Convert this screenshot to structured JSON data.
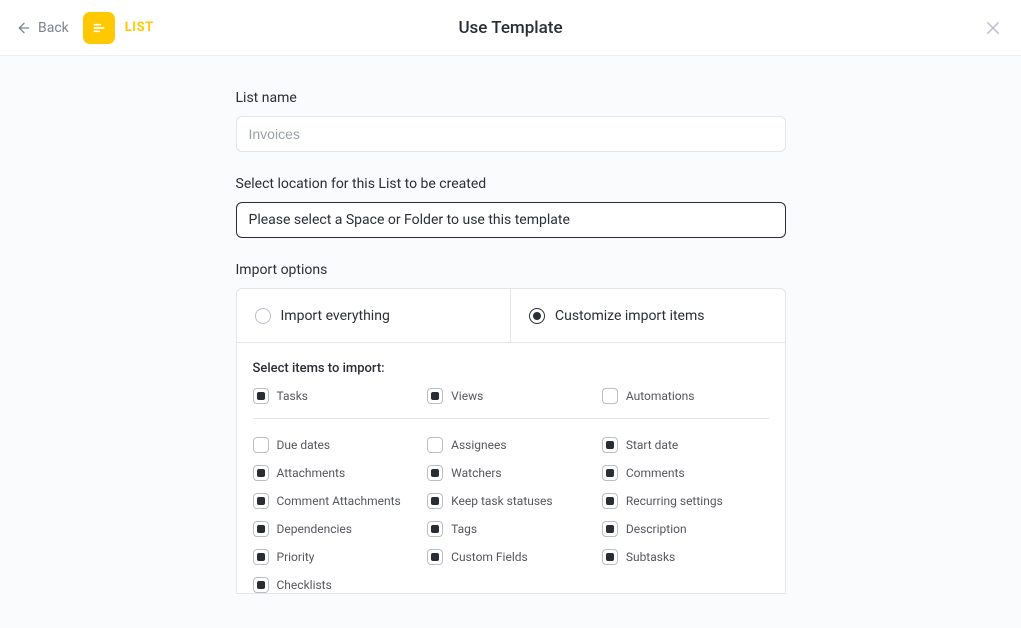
{
  "header": {
    "back_label": "Back",
    "list_badge_label": "LIST",
    "title": "Use Template"
  },
  "form": {
    "list_name_label": "List name",
    "list_name_placeholder": "Invoices",
    "list_name_value": "",
    "location_label": "Select location for this List to be created",
    "location_placeholder": "Please select a Space or Folder to use this template",
    "import_options_label": "Import options",
    "radio": {
      "everything": "Import everything",
      "customize": "Customize import items",
      "selected": "customize"
    },
    "select_items_heading": "Select items to import:",
    "top_items": [
      {
        "key": "tasks",
        "label": "Tasks",
        "checked": true
      },
      {
        "key": "views",
        "label": "Views",
        "checked": true
      },
      {
        "key": "automations",
        "label": "Automations",
        "checked": false
      }
    ],
    "bottom_items": [
      {
        "key": "due-dates",
        "label": "Due dates",
        "checked": false
      },
      {
        "key": "assignees",
        "label": "Assignees",
        "checked": false
      },
      {
        "key": "start-date",
        "label": "Start date",
        "checked": true
      },
      {
        "key": "attachments",
        "label": "Attachments",
        "checked": true
      },
      {
        "key": "watchers",
        "label": "Watchers",
        "checked": true
      },
      {
        "key": "comments",
        "label": "Comments",
        "checked": true
      },
      {
        "key": "comment-attachments",
        "label": "Comment Attachments",
        "checked": true
      },
      {
        "key": "keep-task-statuses",
        "label": "Keep task statuses",
        "checked": true
      },
      {
        "key": "recurring-settings",
        "label": "Recurring settings",
        "checked": true
      },
      {
        "key": "dependencies",
        "label": "Dependencies",
        "checked": true
      },
      {
        "key": "tags",
        "label": "Tags",
        "checked": true
      },
      {
        "key": "description",
        "label": "Description",
        "checked": true
      },
      {
        "key": "priority",
        "label": "Priority",
        "checked": true
      },
      {
        "key": "custom-fields",
        "label": "Custom Fields",
        "checked": true
      },
      {
        "key": "subtasks",
        "label": "Subtasks",
        "checked": true
      },
      {
        "key": "checklists",
        "label": "Checklists",
        "checked": true
      }
    ]
  },
  "colors": {
    "accent": "#ffc800",
    "border": "#e4e6ea",
    "text": "#2a2e34",
    "muted": "#7c828d",
    "bg": "#fafbfc"
  }
}
